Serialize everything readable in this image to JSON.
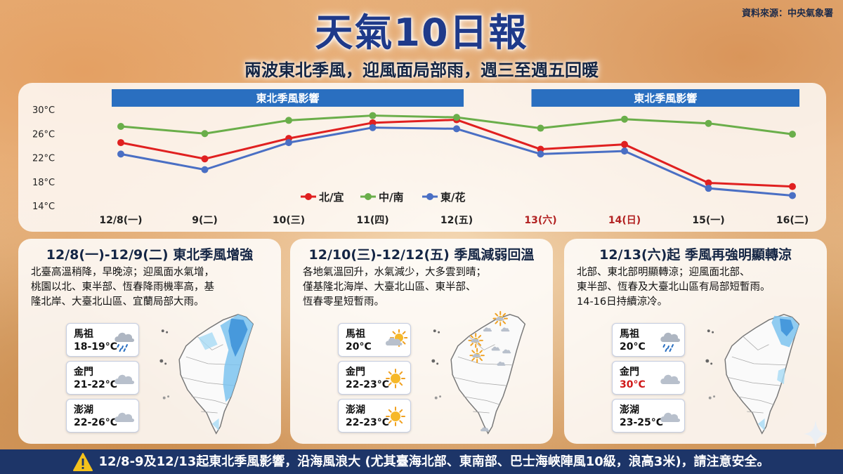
{
  "source": "資料來源：中央氣象署",
  "title": "天氣10日報",
  "subtitle": "兩波東北季風，迎風面局部雨，週三至週五回暖",
  "chart_data": {
    "type": "line",
    "categories": [
      "12/8(一)",
      "9(二)",
      "10(三)",
      "11(四)",
      "12(五)",
      "13(六)",
      "14(日)",
      "15(一)",
      "16(二)"
    ],
    "category_colors": [
      "#222222",
      "#222222",
      "#222222",
      "#222222",
      "#222222",
      "#b22222",
      "#b22222",
      "#222222",
      "#222222"
    ],
    "series": [
      {
        "name": "北/宜",
        "color": "#e02020",
        "values": [
          24.5,
          21.8,
          25.2,
          27.8,
          28.3,
          23.4,
          24.2,
          17.8,
          17.2
        ]
      },
      {
        "name": "中/南",
        "color": "#6aae4a",
        "values": [
          27.2,
          26.0,
          28.2,
          29.0,
          28.7,
          26.9,
          28.4,
          27.7,
          25.9
        ]
      },
      {
        "name": "東/花",
        "color": "#4a6fc4",
        "values": [
          22.6,
          20.0,
          24.5,
          27.0,
          26.8,
          22.6,
          23.1,
          16.9,
          15.7
        ]
      }
    ],
    "yticks": [
      "30°C",
      "26°C",
      "22°C",
      "18°C",
      "14°C"
    ],
    "ytick_values": [
      30,
      26,
      22,
      18,
      14
    ],
    "ylim": [
      14,
      30
    ],
    "bands": [
      {
        "label": "東北季風影響",
        "from": 0,
        "to": 4
      },
      {
        "label": "東北季風影響",
        "from": 5,
        "to": 8
      }
    ],
    "legend_position": "bottom-center"
  },
  "cards": [
    {
      "title": "12/8(一)-12/9(二) 東北季風增強",
      "lines": [
        "北臺高溫稍降，早晚涼；迎風面水氣增，",
        "桃園以北、東半部、恆春降雨機率高，基",
        "隆北岸、大臺北山區、宜蘭局部大雨。"
      ],
      "stations": [
        {
          "name": "馬祖",
          "temp": "18-19°C",
          "icon": "rain-cloud-icon"
        },
        {
          "name": "金門",
          "temp": "21-22°C",
          "icon": "cloud-icon"
        },
        {
          "name": "澎湖",
          "temp": "22-26°C",
          "icon": "cloud-icon"
        }
      ],
      "map": "rain-north-east"
    },
    {
      "title": "12/10(三)-12/12(五) 季風減弱回溫",
      "lines": [
        "各地氣溫回升，水氣減少，大多雲到晴；",
        "僅基隆北海岸、大臺北山區、東半部、",
        "恆春零星短暫雨。"
      ],
      "stations": [
        {
          "name": "馬祖",
          "temp": "20°C",
          "icon": "partly-sunny-icon"
        },
        {
          "name": "金門",
          "temp": "22-23°C",
          "icon": "sun-icon"
        },
        {
          "name": "澎湖",
          "temp": "22-23°C",
          "icon": "sun-icon"
        }
      ],
      "map": "mostly-clear"
    },
    {
      "title": "12/13(六)起 季風再強明顯轉涼",
      "lines": [
        "北部、東北部明顯轉涼；迎風面北部、",
        "東半部、恆春及大臺北山區有局部短暫雨。",
        "14-16日持續涼冷。"
      ],
      "stations": [
        {
          "name": "馬祖",
          "temp": "20°C",
          "icon": "rain-cloud-icon"
        },
        {
          "name": "金門",
          "temp": "30°C",
          "icon": "cloud-icon",
          "temp_color": "#d01818"
        },
        {
          "name": "澎湖",
          "temp": "23-25°C",
          "icon": "cloud-icon"
        }
      ],
      "map": "rain-north"
    }
  ],
  "warning": "12/8-9及12/13起東北季風影響，沿海風浪大 (尤其臺海北部、東南部、巴士海峽陣風10級，浪高3米)，請注意安全。",
  "colors": {
    "title": "#1f3a8a",
    "band": "#2a6fc0",
    "warn_bar": "#1d3568",
    "weekend": "#b22222"
  }
}
